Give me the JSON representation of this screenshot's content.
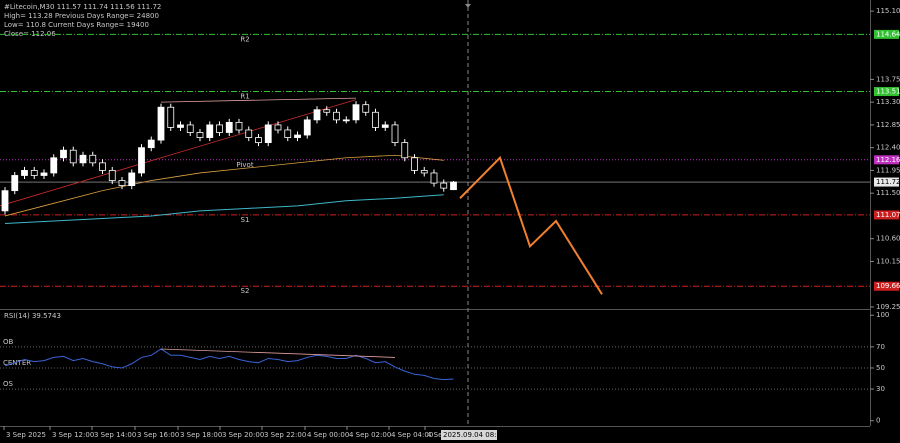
{
  "chart_data": {
    "type": "candlestick",
    "title": "#Litecoin,M30",
    "info": [
      "High= 113.28   Previous Days Range= 24800",
      "Low= 110.8   Current Days Range= 19400",
      "Close= 112.06"
    ],
    "open": [
      111.15,
      111.55,
      111.85,
      111.95,
      111.85,
      111.9,
      112.2,
      112.35,
      112.1,
      112.25,
      112.1,
      111.95,
      111.75,
      111.65,
      111.9,
      112.4,
      112.55,
      113.2,
      112.8,
      112.85,
      112.7,
      112.6,
      112.85,
      112.7,
      112.9,
      112.75,
      112.6,
      112.5,
      112.85,
      112.75,
      112.6,
      112.65,
      112.95,
      113.15,
      113.1,
      112.95,
      112.95,
      113.25,
      113.1,
      112.8,
      112.85,
      112.5,
      112.2,
      111.95,
      111.9,
      111.7,
      111.57
    ],
    "high": [
      111.62,
      111.92,
      112.02,
      112.02,
      111.97,
      112.27,
      112.42,
      112.42,
      112.32,
      112.32,
      112.17,
      112.02,
      111.82,
      111.97,
      112.47,
      112.62,
      113.27,
      113.27,
      112.92,
      112.92,
      112.77,
      112.92,
      112.92,
      112.97,
      112.97,
      112.82,
      112.67,
      112.92,
      112.92,
      112.82,
      112.72,
      113.02,
      113.22,
      113.22,
      113.17,
      113.02,
      113.32,
      113.32,
      113.17,
      112.92,
      112.92,
      112.57,
      112.27,
      112.02,
      111.97,
      111.77,
      111.74
    ],
    "low": [
      111.08,
      111.48,
      111.78,
      111.78,
      111.78,
      111.83,
      112.13,
      112.03,
      112.03,
      112.03,
      111.88,
      111.68,
      111.58,
      111.58,
      111.83,
      112.33,
      112.48,
      112.73,
      112.73,
      112.63,
      112.53,
      112.53,
      112.63,
      112.63,
      112.68,
      112.53,
      112.43,
      112.43,
      112.68,
      112.53,
      112.53,
      112.58,
      112.88,
      113.03,
      112.88,
      112.88,
      112.88,
      113.03,
      112.73,
      112.73,
      112.43,
      112.13,
      111.88,
      111.83,
      111.63,
      111.53,
      111.56
    ],
    "close": [
      111.55,
      111.85,
      111.95,
      111.85,
      111.9,
      112.2,
      112.35,
      112.1,
      112.25,
      112.1,
      111.95,
      111.75,
      111.65,
      111.9,
      112.4,
      112.55,
      113.2,
      112.8,
      112.85,
      112.7,
      112.6,
      112.85,
      112.7,
      112.9,
      112.75,
      112.6,
      112.5,
      112.85,
      112.75,
      112.6,
      112.65,
      112.95,
      113.15,
      113.1,
      112.95,
      112.95,
      113.25,
      113.1,
      112.8,
      112.85,
      112.5,
      112.2,
      111.95,
      111.9,
      111.7,
      111.6,
      111.72
    ],
    "bull_color": "#ffffff",
    "bear_color": "#000000",
    "ylim": [
      109.21,
      115.32
    ],
    "yticks": [
      {
        "value": 115.1,
        "label": "115.10"
      },
      113.75,
      {
        "value": 113.3,
        "label": "113.30"
      },
      112.85,
      {
        "value": 112.4,
        "label": "112.40"
      },
      111.95,
      {
        "value": 111.5,
        "label": "111.50"
      },
      {
        "value": 110.6,
        "label": "110.60"
      },
      110.15,
      109.25
    ],
    "levels": [
      {
        "name": "R2",
        "value": 114.64,
        "color": "#2fbf2f"
      },
      {
        "name": "R1",
        "value": 113.51,
        "color": "#2fbf2f"
      },
      {
        "name": "Pivot",
        "value": 112.16,
        "color": "#c030c0"
      },
      {
        "name": "S1",
        "value": 111.07,
        "color": "#cc2020"
      },
      {
        "name": "S2",
        "value": 109.66,
        "color": "#cc2020"
      }
    ],
    "ma_fast": {
      "color": "#d9a040",
      "values": [
        111.05,
        111.3,
        111.55,
        111.75,
        111.9,
        112.0,
        112.1,
        112.2,
        112.25,
        112.15
      ]
    },
    "ma_slow": {
      "color": "#3fb8c8",
      "values": [
        110.9,
        110.95,
        111.0,
        111.05,
        111.15,
        111.2,
        111.25,
        111.35,
        111.4,
        111.47
      ]
    },
    "trendline": {
      "color": "#cc2a2a",
      "values": [
        111.25,
        113.35
      ]
    },
    "resistance_line": {
      "color": "#e0a0a0",
      "values": [
        113.3,
        113.38
      ]
    },
    "projection": {
      "color": "#f08030",
      "values": [
        111.4,
        112.2,
        110.45,
        110.95,
        109.5
      ]
    },
    "rsi": {
      "title": "RSI(14) 39.5743",
      "color": "#3a64d8",
      "values": [
        52,
        55,
        58,
        56,
        57,
        60,
        61,
        57,
        59,
        56,
        54,
        51,
        50,
        54,
        60,
        62,
        68,
        62,
        62,
        60,
        58,
        61,
        59,
        61,
        58,
        56,
        55,
        59,
        58,
        56,
        57,
        60,
        62,
        61,
        59,
        59,
        62,
        59,
        55,
        56,
        51,
        47,
        44,
        43,
        40,
        39,
        39.5743
      ],
      "ylim": [
        -5,
        104
      ],
      "yticks": [
        100,
        70,
        50,
        30,
        0
      ],
      "levels": [
        {
          "name": "OB",
          "value": 70
        },
        {
          "name": "CENTER",
          "value": 50
        },
        {
          "name": "OS",
          "value": 30
        }
      ],
      "divergence": {
        "color": "#e0a0a0",
        "values": [
          68,
          60
        ]
      }
    },
    "time_labels": [
      "3 Sep 2025",
      "3 Sep 12:00",
      "3 Sep 14:00",
      "3 Sep 16:00",
      "3 Sep 18:00",
      "3 Sep 20:00",
      "3 Sep 22:00",
      "4 Sep 00:00",
      "4 Sep 02:00",
      "4 Sep 04:00",
      "4 Sep"
    ],
    "cursor_time": "2025.09.04 08:00"
  }
}
